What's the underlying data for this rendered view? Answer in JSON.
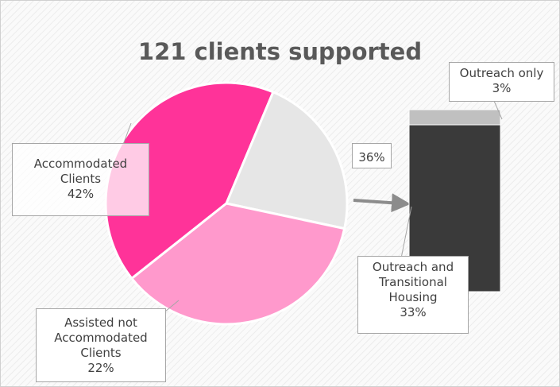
{
  "chart_data": {
    "type": "bar-of-pie",
    "title": "121 clients supported",
    "categories": [
      "Accommodated Clients",
      "Assisted not Accommodated Clients",
      null
    ],
    "values": [
      42,
      22,
      36
    ],
    "value_labels": [
      "42%",
      "22%",
      "36%"
    ],
    "colors": [
      "#ff3399",
      "#e6e6e6",
      "#ff99cc"
    ],
    "breakdown": {
      "categories": [
        "Outreach only",
        "Outreach and Transitional Housing"
      ],
      "values": [
        3,
        33
      ],
      "value_labels": [
        "3%",
        "33%"
      ],
      "colors": [
        "#c0c0c0",
        "#3a3a3a"
      ]
    }
  }
}
